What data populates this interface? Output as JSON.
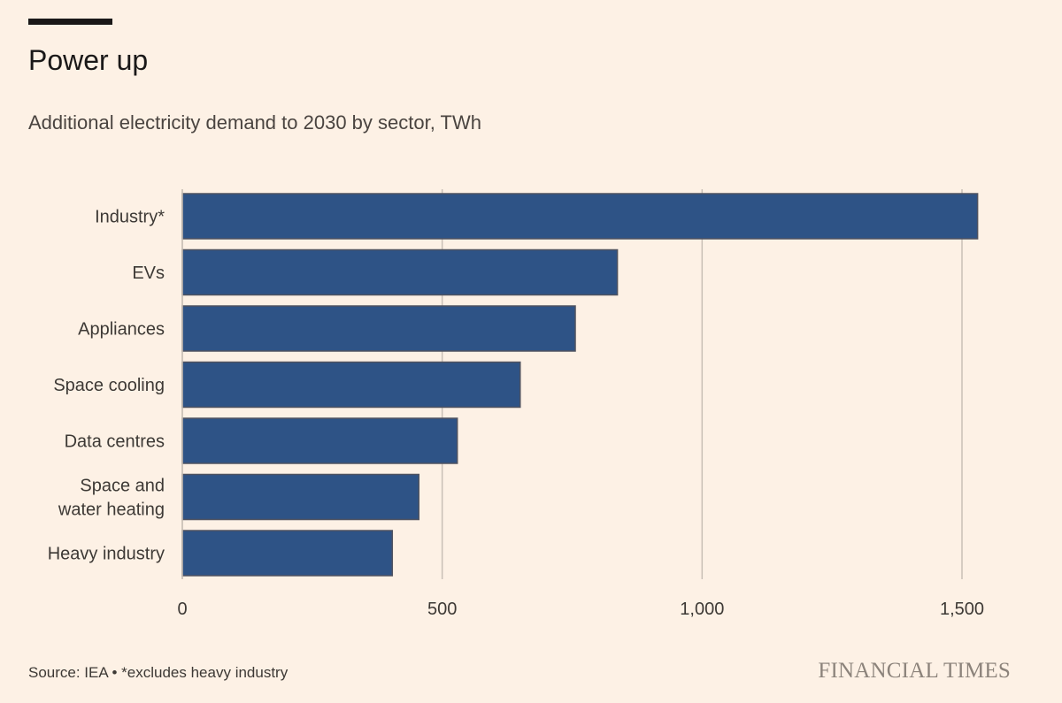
{
  "title": "Power up",
  "subtitle": "Additional electricity demand to 2030 by sector, TWh",
  "footer": {
    "source": "Source: IEA • *excludes heavy industry",
    "brand": "FINANCIAL TIMES"
  },
  "colors": {
    "background": "#FDF1E5",
    "bar": "#2E5386",
    "bar_stroke": "#4F5360",
    "grid": "#C9C0B6",
    "text": "#3D3935"
  },
  "chart_data": {
    "type": "bar",
    "orientation": "horizontal",
    "categories": [
      "Industry*",
      "EVs",
      "Appliances",
      "Space cooling",
      "Data centres",
      "Space and water heating",
      "Heavy industry"
    ],
    "category_lines": [
      [
        "Industry*"
      ],
      [
        "EVs"
      ],
      [
        "Appliances"
      ],
      [
        "Space cooling"
      ],
      [
        "Data centres"
      ],
      [
        "Space and",
        "water heating"
      ],
      [
        "Heavy industry"
      ]
    ],
    "values": [
      1530,
      837,
      756,
      650,
      529,
      455,
      404
    ],
    "xlim": [
      0,
      1500
    ],
    "xticks": [
      0,
      500,
      1000,
      1500
    ],
    "xtick_labels": [
      "0",
      "500",
      "1,000",
      "1,500"
    ],
    "grid": true,
    "xlabel": "",
    "ylabel": ""
  }
}
